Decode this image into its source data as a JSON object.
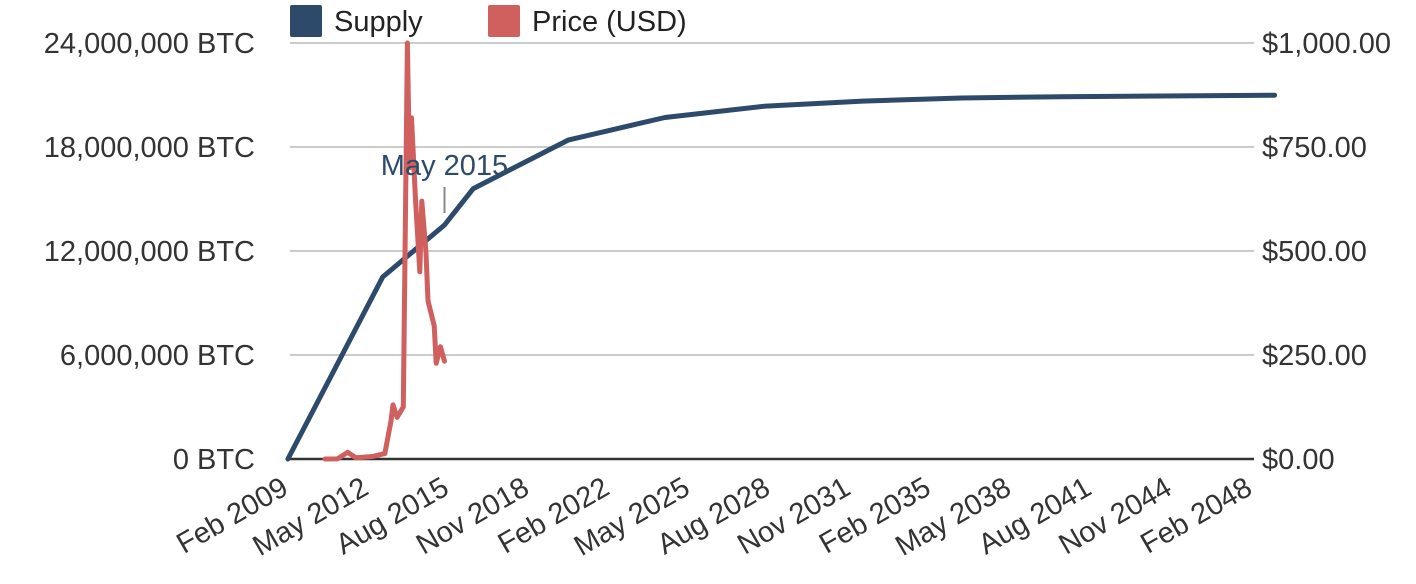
{
  "chart_data": {
    "type": "line",
    "legend": {
      "position": "top-left",
      "entries": [
        {
          "label": "Supply",
          "color": "#2e4a6b"
        },
        {
          "label": "Price (USD)",
          "color": "#d0605e"
        }
      ]
    },
    "grid": true,
    "x_ticks": [
      "Feb 2009",
      "May 2012",
      "Aug 2015",
      "Nov 2018",
      "Feb 2022",
      "May 2025",
      "Aug 2028",
      "Nov 2031",
      "Feb 2035",
      "May 2038",
      "Aug 2041",
      "Nov 2044",
      "Feb 2048"
    ],
    "y_left": {
      "ticks": [
        0,
        6000000,
        12000000,
        18000000,
        24000000
      ],
      "tick_labels": [
        "0 BTC",
        "6,000,000 BTC",
        "12,000,000 BTC",
        "18,000,000 BTC",
        "24,000,000 BTC"
      ],
      "range": [
        0,
        24000000
      ]
    },
    "y_right": {
      "ticks": [
        0,
        250,
        500,
        750,
        1000
      ],
      "tick_labels": [
        "$0.00",
        "$250.00",
        "$500.00",
        "$750.00",
        "$1,000.00"
      ],
      "range": [
        0,
        1000
      ]
    },
    "annotation": {
      "label": "May 2015",
      "date": "2015-05"
    },
    "series": [
      {
        "name": "Supply",
        "axis": "left",
        "color": "#2e4a6b",
        "points": [
          [
            "2009-01",
            0
          ],
          [
            "2012-11",
            10500000
          ],
          [
            "2015-05",
            13500000
          ],
          [
            "2016-07",
            15600000
          ],
          [
            "2020-05",
            18400000
          ],
          [
            "2024-04",
            19700000
          ],
          [
            "2028-04",
            20350000
          ],
          [
            "2032-04",
            20650000
          ],
          [
            "2036-04",
            20825000
          ],
          [
            "2040-04",
            20900000
          ],
          [
            "2048-12",
            20990000
          ]
        ]
      },
      {
        "name": "Price (USD)",
        "axis": "right",
        "color": "#d0605e",
        "points": [
          [
            "2010-07",
            0.1
          ],
          [
            "2011-01",
            0.3
          ],
          [
            "2011-06",
            16
          ],
          [
            "2011-10",
            3
          ],
          [
            "2012-06",
            6
          ],
          [
            "2012-12",
            13
          ],
          [
            "2013-03",
            90
          ],
          [
            "2013-04",
            130
          ],
          [
            "2013-06",
            100
          ],
          [
            "2013-09",
            125
          ],
          [
            "2013-11",
            1000
          ],
          [
            "2013-12",
            700
          ],
          [
            "2014-01",
            820
          ],
          [
            "2014-03",
            620
          ],
          [
            "2014-05",
            450
          ],
          [
            "2014-06",
            620
          ],
          [
            "2014-08",
            500
          ],
          [
            "2014-09",
            380
          ],
          [
            "2014-12",
            320
          ],
          [
            "2015-01",
            230
          ],
          [
            "2015-03",
            270
          ],
          [
            "2015-05",
            235
          ]
        ]
      }
    ]
  }
}
